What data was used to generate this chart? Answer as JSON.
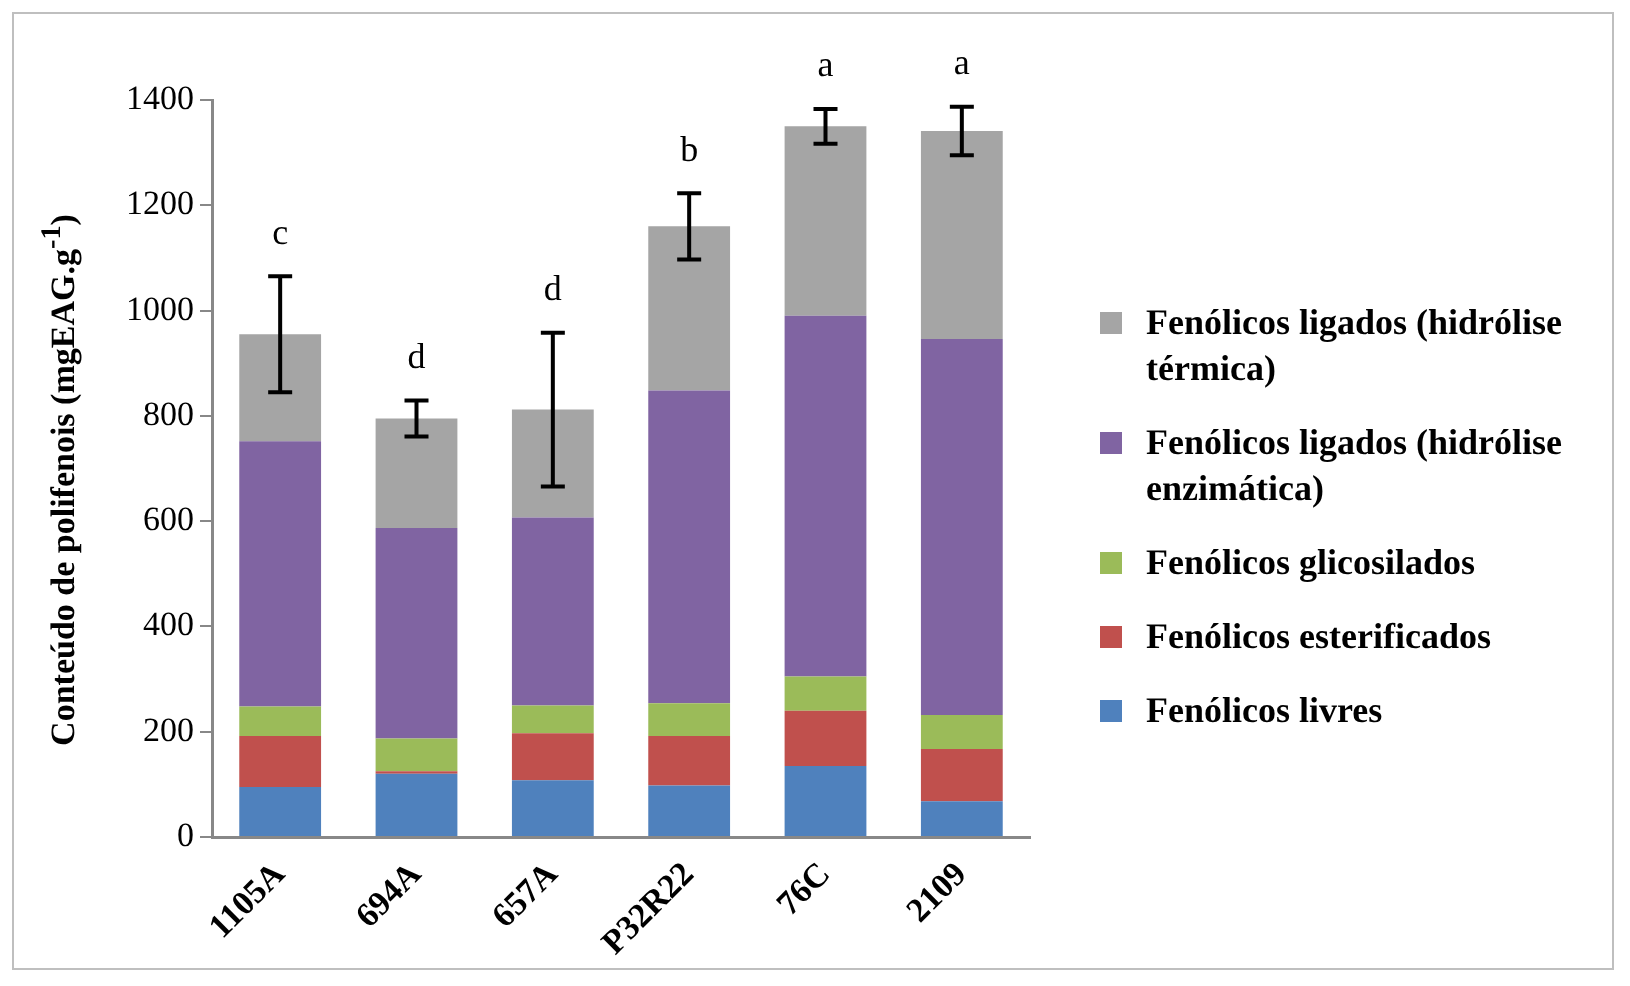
{
  "chart_data": {
    "type": "bar",
    "stacked": true,
    "ylabel": "Conteúdo de polifenois (mgEAG.g$^{-1}$)",
    "categories": [
      "1105A",
      "694A",
      "657A",
      "P32R22",
      "76C",
      "2109"
    ],
    "series": [
      {
        "name": "Fenólicos livres",
        "color": "#4f81bd",
        "values": [
          95,
          120,
          108,
          98,
          135,
          68
        ]
      },
      {
        "name": "Fenólicos esterificados",
        "color": "#c0504d",
        "values": [
          97,
          5,
          89,
          94,
          105,
          99
        ]
      },
      {
        "name": "Fenólicos glicosilados",
        "color": "#9bbb59",
        "values": [
          56,
          62,
          53,
          62,
          65,
          65
        ]
      },
      {
        "name": "Fenólicos ligados (hidrólise enzimática)",
        "color": "#8064a2",
        "values": [
          504,
          400,
          357,
          594,
          685,
          714
        ]
      },
      {
        "name": "Fenólicos ligados (hidrólise térmica)",
        "color": "#a5a5a5",
        "values": [
          203,
          208,
          205,
          312,
          360,
          395
        ],
        "errors": [
          110,
          34,
          146,
          63,
          33,
          46
        ]
      }
    ],
    "annotations": [
      "c",
      "d",
      "d",
      "b",
      "a",
      "a"
    ],
    "ylim": [
      0,
      1400
    ],
    "yticks": [
      0,
      200,
      400,
      600,
      800,
      1000,
      1200,
      1400
    ],
    "grid": false,
    "legend": "right"
  }
}
